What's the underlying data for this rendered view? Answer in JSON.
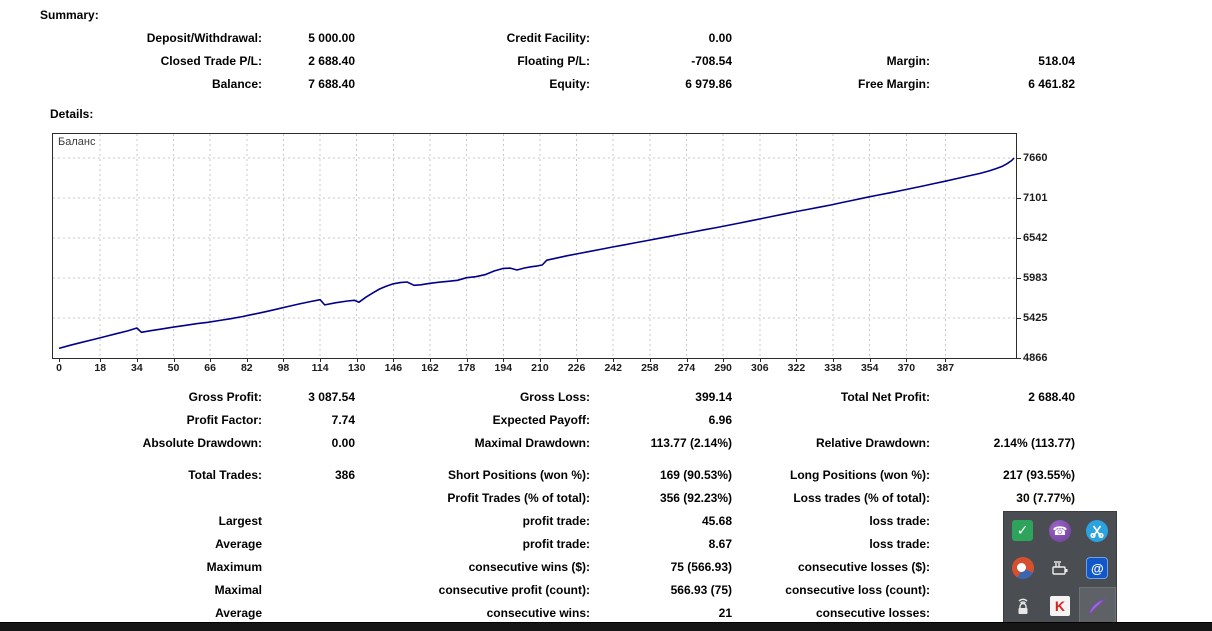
{
  "summary": {
    "heading": "Summary:",
    "rows": [
      [
        "Deposit/Withdrawal:",
        "5 000.00",
        "Credit Facility:",
        "0.00",
        "",
        ""
      ],
      [
        "Closed Trade P/L:",
        "2 688.40",
        "Floating P/L:",
        "-708.54",
        "Margin:",
        "518.04"
      ],
      [
        "Balance:",
        "7 688.40",
        "Equity:",
        "6 979.86",
        "Free Margin:",
        "6 461.82"
      ]
    ]
  },
  "details": {
    "heading": "Details:"
  },
  "chart_data": {
    "type": "line",
    "title": "Баланс",
    "legend_position": "top-left",
    "grid": true,
    "xlim": [
      0,
      417
    ],
    "ylim": [
      4866,
      7660
    ],
    "x_ticks": [
      0,
      18,
      34,
      50,
      66,
      82,
      98,
      114,
      130,
      146,
      162,
      178,
      194,
      210,
      226,
      242,
      258,
      274,
      290,
      306,
      322,
      338,
      354,
      370,
      387
    ],
    "y_ticks": [
      4866,
      5425,
      5983,
      6542,
      7101,
      7660
    ],
    "line_color": "#00008b",
    "series": [
      {
        "name": "Баланс",
        "points": [
          [
            0,
            5000
          ],
          [
            5,
            5045
          ],
          [
            10,
            5085
          ],
          [
            15,
            5125
          ],
          [
            20,
            5165
          ],
          [
            25,
            5205
          ],
          [
            30,
            5245
          ],
          [
            34,
            5285
          ],
          [
            36,
            5225
          ],
          [
            40,
            5248
          ],
          [
            45,
            5272
          ],
          [
            50,
            5298
          ],
          [
            55,
            5322
          ],
          [
            60,
            5345
          ],
          [
            65,
            5365
          ],
          [
            70,
            5390
          ],
          [
            75,
            5415
          ],
          [
            80,
            5445
          ],
          [
            85,
            5478
          ],
          [
            90,
            5512
          ],
          [
            95,
            5548
          ],
          [
            100,
            5585
          ],
          [
            105,
            5622
          ],
          [
            110,
            5655
          ],
          [
            114,
            5680
          ],
          [
            116,
            5608
          ],
          [
            121,
            5638
          ],
          [
            126,
            5662
          ],
          [
            129,
            5672
          ],
          [
            131,
            5645
          ],
          [
            134,
            5715
          ],
          [
            137,
            5775
          ],
          [
            140,
            5830
          ],
          [
            143,
            5870
          ],
          [
            146,
            5902
          ],
          [
            149,
            5920
          ],
          [
            152,
            5928
          ],
          [
            155,
            5882
          ],
          [
            158,
            5888
          ],
          [
            162,
            5910
          ],
          [
            166,
            5925
          ],
          [
            170,
            5938
          ],
          [
            174,
            5952
          ],
          [
            178,
            5988
          ],
          [
            182,
            6002
          ],
          [
            186,
            6030
          ],
          [
            190,
            6082
          ],
          [
            194,
            6118
          ],
          [
            197,
            6122
          ],
          [
            200,
            6096
          ],
          [
            203,
            6122
          ],
          [
            206,
            6140
          ],
          [
            209,
            6152
          ],
          [
            211,
            6165
          ],
          [
            213,
            6232
          ],
          [
            217,
            6260
          ],
          [
            222,
            6295
          ],
          [
            227,
            6326
          ],
          [
            232,
            6357
          ],
          [
            237,
            6388
          ],
          [
            242,
            6418
          ],
          [
            247,
            6448
          ],
          [
            252,
            6478
          ],
          [
            257,
            6508
          ],
          [
            262,
            6538
          ],
          [
            267,
            6568
          ],
          [
            272,
            6598
          ],
          [
            277,
            6628
          ],
          [
            282,
            6658
          ],
          [
            287,
            6688
          ],
          [
            292,
            6718
          ],
          [
            297,
            6750
          ],
          [
            302,
            6782
          ],
          [
            307,
            6815
          ],
          [
            312,
            6848
          ],
          [
            317,
            6880
          ],
          [
            322,
            6912
          ],
          [
            327,
            6942
          ],
          [
            332,
            6972
          ],
          [
            337,
            7004
          ],
          [
            342,
            7038
          ],
          [
            347,
            7072
          ],
          [
            352,
            7106
          ],
          [
            357,
            7138
          ],
          [
            362,
            7168
          ],
          [
            367,
            7200
          ],
          [
            372,
            7234
          ],
          [
            377,
            7268
          ],
          [
            382,
            7302
          ],
          [
            387,
            7336
          ],
          [
            392,
            7372
          ],
          [
            397,
            7408
          ],
          [
            402,
            7444
          ],
          [
            406,
            7478
          ],
          [
            409,
            7510
          ],
          [
            412,
            7545
          ],
          [
            414,
            7580
          ],
          [
            416,
            7625
          ],
          [
            417,
            7660
          ]
        ]
      }
    ]
  },
  "stats": {
    "rows": [
      [
        "Gross Profit:",
        "3 087.54",
        "Gross Loss:",
        "399.14",
        "Total Net Profit:",
        "2 688.40"
      ],
      [
        "Profit Factor:",
        "7.74",
        "Expected Payoff:",
        "6.96",
        "",
        ""
      ],
      [
        "Absolute Drawdown:",
        "0.00",
        "Maximal Drawdown:",
        "113.77 (2.14%)",
        "Relative Drawdown:",
        "2.14% (113.77)"
      ],
      [
        "Total Trades:",
        "386",
        "Short Positions (won %):",
        "169 (90.53%)",
        "Long Positions (won %):",
        "217 (93.55%)"
      ],
      [
        "",
        "",
        "Profit Trades (% of total):",
        "356 (92.23%)",
        "Loss trades (% of total):",
        "30 (7.77%)"
      ],
      [
        "Largest",
        "",
        "profit trade:",
        "45.68",
        "loss trade:",
        ""
      ],
      [
        "Average",
        "",
        "profit trade:",
        "8.67",
        "loss trade:",
        ""
      ],
      [
        "Maximum",
        "",
        "consecutive wins ($):",
        "75 (566.93)",
        "consecutive losses ($):",
        ""
      ],
      [
        "Maximal",
        "",
        "consecutive profit (count):",
        "566.93 (75)",
        "consecutive loss (count):",
        ""
      ],
      [
        "Average",
        "",
        "consecutive wins:",
        "21",
        "consecutive losses:",
        ""
      ]
    ],
    "gap_after_row": 2
  },
  "tray": {
    "icons": [
      "check-icon",
      "viber-icon",
      "scissors-icon",
      "ccleaner-icon",
      "battery-plug-icon",
      "spiral-at-icon",
      "wireless-lock-icon",
      "kaspersky-icon",
      "feather-icon"
    ],
    "highlight_index": 8
  },
  "colors": {
    "line": "#00008b",
    "grid": "#c9c9c9",
    "chart_border": "#2b2b2b",
    "tray_bg": "#4a4d52",
    "tray_highlight": "#5e6267",
    "taskbar": "#161616"
  }
}
